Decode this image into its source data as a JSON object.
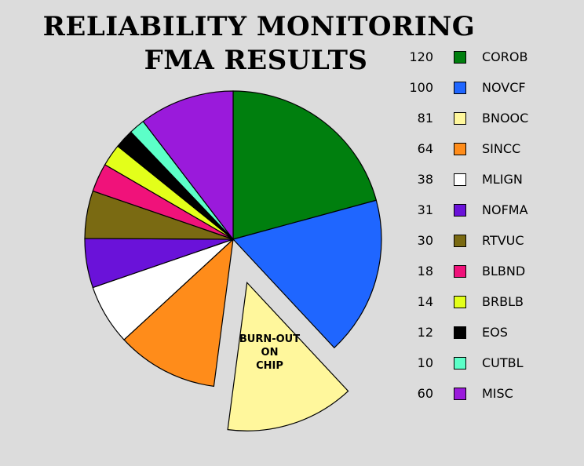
{
  "chart_data": {
    "type": "pie",
    "title": "RELIABILITY MONITORING",
    "subtitle": "FMA RESULTS",
    "legend_position": "right",
    "exploded_slice": "BNOOC",
    "exploded_slice_annotation": [
      "BURN-OUT",
      "ON",
      "CHIP"
    ],
    "slices": [
      {
        "label": "COROB",
        "value": 120,
        "color": "#007f0e"
      },
      {
        "label": "NOVCF",
        "value": 100,
        "color": "#1f66ff"
      },
      {
        "label": "BNOOC",
        "value": 81,
        "color": "#fff79c"
      },
      {
        "label": "SINCC",
        "value": 64,
        "color": "#ff8c1a"
      },
      {
        "label": "MLIGN",
        "value": 38,
        "color": "#ffffff"
      },
      {
        "label": "NOFMA",
        "value": 31,
        "color": "#6a12d9"
      },
      {
        "label": "RTVUC",
        "value": 30,
        "color": "#7a6a12"
      },
      {
        "label": "BLBND",
        "value": 18,
        "color": "#f0127a"
      },
      {
        "label": "BRBLB",
        "value": 14,
        "color": "#e3ff1a"
      },
      {
        "label": "EOS",
        "value": 12,
        "color": "#000000"
      },
      {
        "label": "CUTBL",
        "value": 10,
        "color": "#5cffc8"
      },
      {
        "label": "MISC",
        "value": 60,
        "color": "#9a1adb"
      }
    ]
  }
}
